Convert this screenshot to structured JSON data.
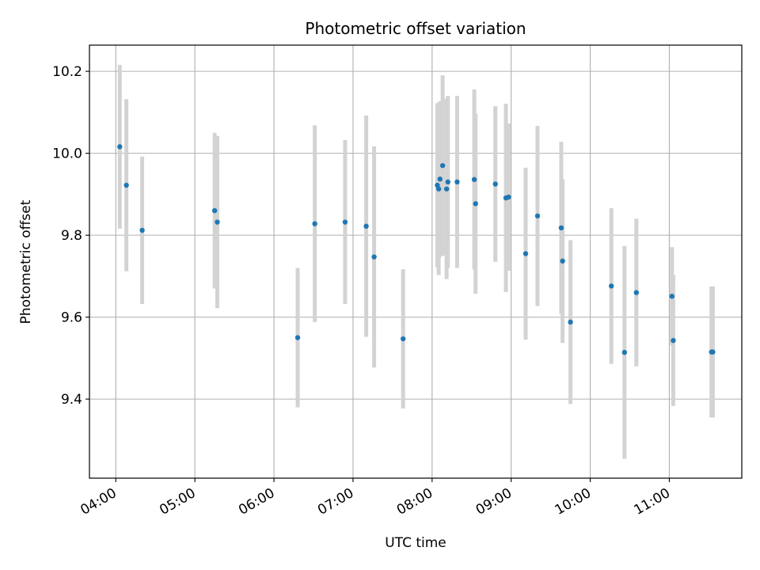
{
  "chart_data": {
    "type": "scatter",
    "title": "Photometric offset variation",
    "xlabel": "UTC time",
    "ylabel": "Photometric offset",
    "x_tick_labels": [
      "04:00",
      "05:00",
      "06:00",
      "07:00",
      "08:00",
      "09:00",
      "10:00",
      "11:00"
    ],
    "y_tick_labels": [
      "9.4",
      "9.6",
      "9.8",
      "10.0",
      "10.2"
    ],
    "grid": true,
    "error_bar_color": "#d3d3d3",
    "point_color": "#1f77b4",
    "series": [
      {
        "points": [
          {
            "x": "04:03",
            "y": 10.016,
            "yerr": 0.2
          },
          {
            "x": "04:08",
            "y": 9.922,
            "yerr": 0.21
          },
          {
            "x": "04:20",
            "y": 9.812,
            "yerr": 0.18
          },
          {
            "x": "05:15",
            "y": 9.86,
            "yerr": 0.19
          },
          {
            "x": "05:17",
            "y": 9.832,
            "yerr": 0.21
          },
          {
            "x": "06:18",
            "y": 9.55,
            "yerr": 0.17
          },
          {
            "x": "06:31",
            "y": 9.828,
            "yerr": 0.24
          },
          {
            "x": "06:54",
            "y": 9.832,
            "yerr": 0.2
          },
          {
            "x": "07:10",
            "y": 9.822,
            "yerr": 0.27
          },
          {
            "x": "07:16",
            "y": 9.747,
            "yerr": 0.27
          },
          {
            "x": "07:38",
            "y": 9.547,
            "yerr": 0.17
          },
          {
            "x": "08:04",
            "y": 9.922,
            "yerr": 0.2
          },
          {
            "x": "08:05",
            "y": 9.913,
            "yerr": 0.21
          },
          {
            "x": "08:06",
            "y": 9.937,
            "yerr": 0.19
          },
          {
            "x": "08:08",
            "y": 9.97,
            "yerr": 0.22
          },
          {
            "x": "08:11",
            "y": 9.913,
            "yerr": 0.22
          },
          {
            "x": "08:12",
            "y": 9.93,
            "yerr": 0.21
          },
          {
            "x": "08:19",
            "y": 9.93,
            "yerr": 0.21
          },
          {
            "x": "08:32",
            "y": 9.936,
            "yerr": 0.22
          },
          {
            "x": "08:33",
            "y": 9.877,
            "yerr": 0.22
          },
          {
            "x": "08:48",
            "y": 9.925,
            "yerr": 0.19
          },
          {
            "x": "08:56",
            "y": 9.891,
            "yerr": 0.23
          },
          {
            "x": "08:58",
            "y": 9.893,
            "yerr": 0.18
          },
          {
            "x": "09:11",
            "y": 9.755,
            "yerr": 0.21
          },
          {
            "x": "09:20",
            "y": 9.847,
            "yerr": 0.22
          },
          {
            "x": "09:38",
            "y": 9.818,
            "yerr": 0.21
          },
          {
            "x": "09:39",
            "y": 9.737,
            "yerr": 0.2
          },
          {
            "x": "09:45",
            "y": 9.588,
            "yerr": 0.2
          },
          {
            "x": "10:16",
            "y": 9.676,
            "yerr": 0.19
          },
          {
            "x": "10:26",
            "y": 9.514,
            "yerr": 0.26
          },
          {
            "x": "10:35",
            "y": 9.66,
            "yerr": 0.18
          },
          {
            "x": "11:02",
            "y": 9.651,
            "yerr": 0.12
          },
          {
            "x": "11:03",
            "y": 9.543,
            "yerr": 0.16
          },
          {
            "x": "11:32",
            "y": 9.515,
            "yerr": 0.16
          },
          {
            "x": "11:33",
            "y": 9.515,
            "yerr": 0.16
          }
        ]
      }
    ]
  }
}
